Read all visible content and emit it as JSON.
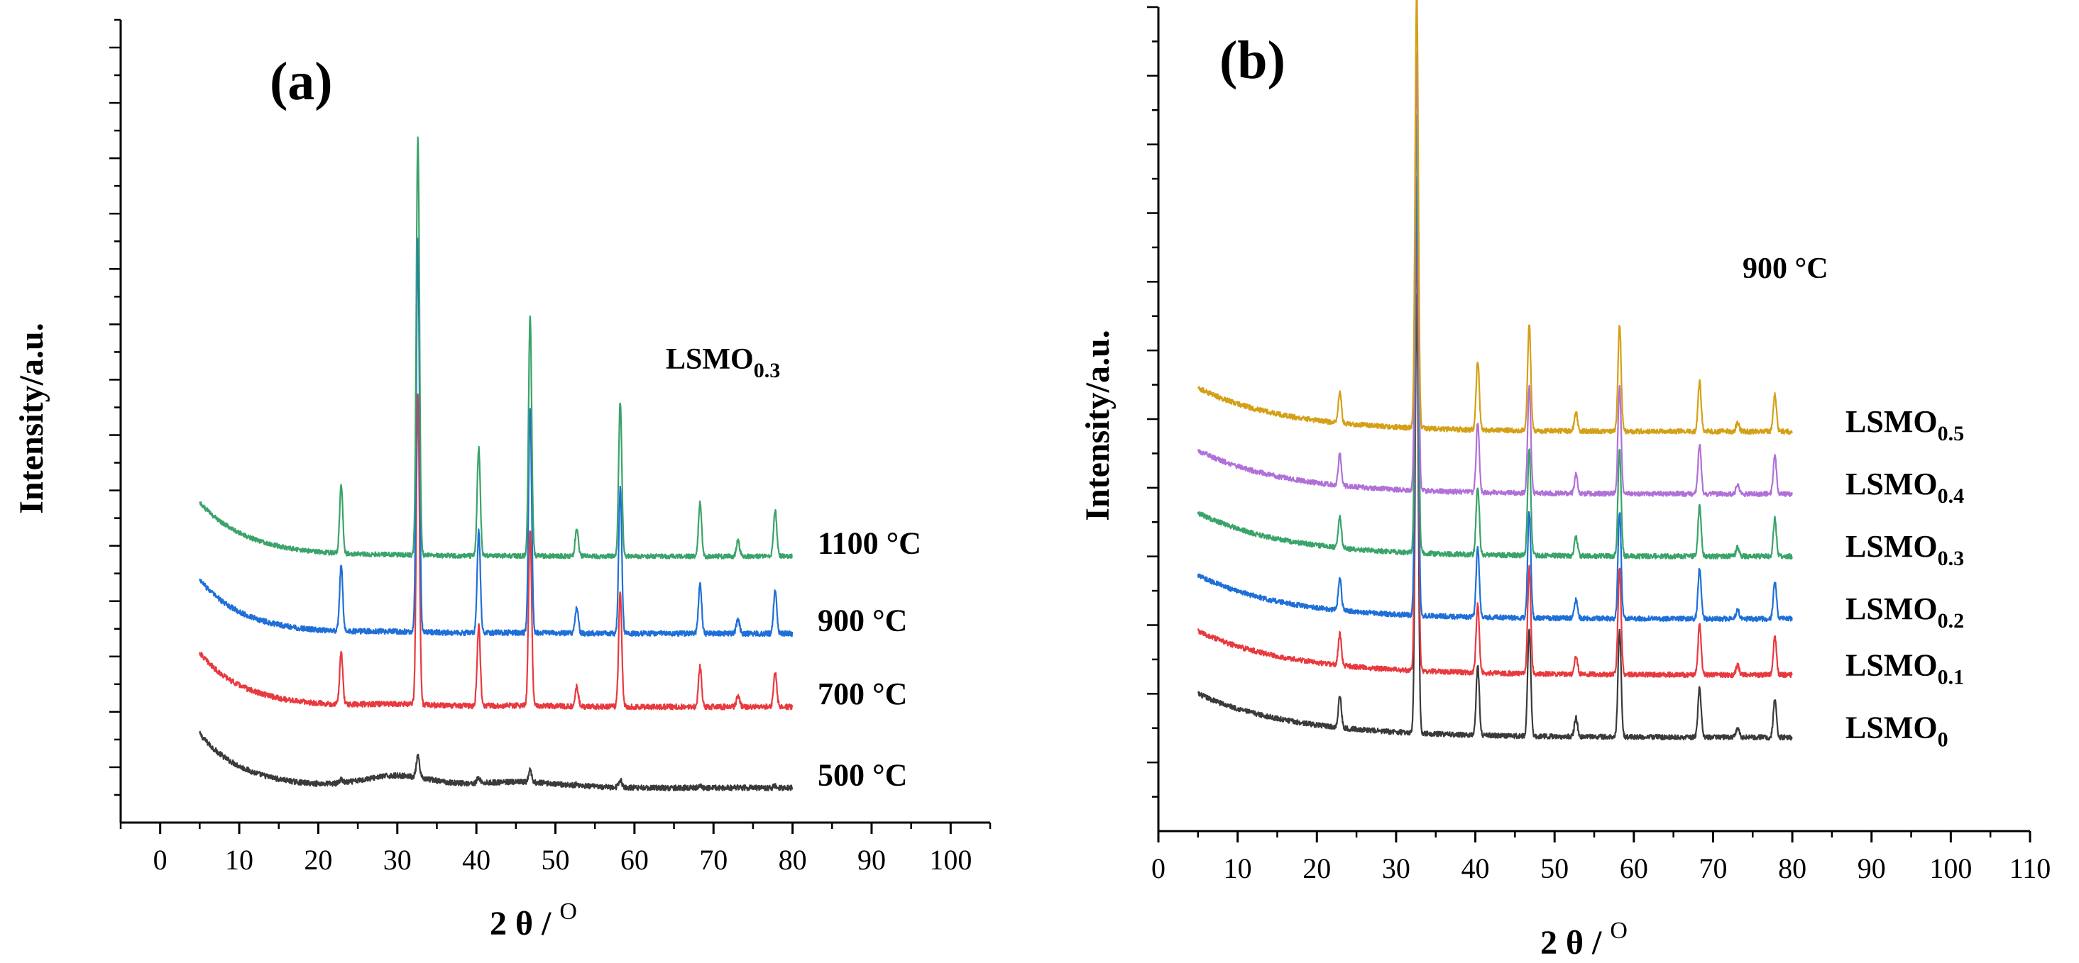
{
  "chart_data": [
    {
      "type": "line",
      "panel_label": "(a)",
      "title": "",
      "annotation": {
        "main": "LSMO",
        "sub": "0.3"
      },
      "xlabel": "2 θ / ",
      "xlabel_sup": "O",
      "ylabel": "Intensity/a.u.",
      "xlim": [
        -5,
        105
      ],
      "ylim": [
        -2,
        102
      ],
      "x_ticks": [
        0,
        10,
        20,
        30,
        40,
        50,
        60,
        70,
        80,
        90,
        100
      ],
      "x_tick_labels": [
        "0",
        "10",
        "20",
        "30",
        "40",
        "50",
        "60",
        "70",
        "80",
        "90",
        "100"
      ],
      "y_tick_labels_shown": false,
      "x_range_data": [
        5,
        80
      ],
      "series": [
        {
          "name": "500 °C",
          "label_main": "500 °C",
          "label_sub": "",
          "color": "#3a3a3a",
          "offset": 2.5,
          "hump": 1.5,
          "decay": 5.5,
          "noise": 0.35,
          "peakScale": 0.05
        },
        {
          "name": "700 °C",
          "label_main": "700 °C",
          "label_sub": "",
          "color": "#e8393f",
          "offset": 13.0,
          "hump": 0.3,
          "decay": 5.5,
          "noise": 0.35,
          "peakScale": 0.74
        },
        {
          "name": "900 °C",
          "label_main": "900 °C",
          "label_sub": "",
          "color": "#1f6fd8",
          "offset": 22.5,
          "hump": 0.2,
          "decay": 5.5,
          "noise": 0.35,
          "peakScale": 0.94
        },
        {
          "name": "1100 °C",
          "label_main": "1100 °C",
          "label_sub": "",
          "color": "#3aa36a",
          "offset": 32.5,
          "hump": 0.1,
          "decay": 6.0,
          "noise": 0.3,
          "peakScale": 1.0
        }
      ],
      "peaks": [
        {
          "x": 22.9,
          "h": 9
        },
        {
          "x": 32.6,
          "h": 54
        },
        {
          "x": 40.3,
          "h": 14
        },
        {
          "x": 46.8,
          "h": 31
        },
        {
          "x": 52.7,
          "h": 3.5
        },
        {
          "x": 58.2,
          "h": 20
        },
        {
          "x": 68.3,
          "h": 7
        },
        {
          "x": 73.1,
          "h": 2
        },
        {
          "x": 77.8,
          "h": 6
        }
      ]
    },
    {
      "type": "line",
      "panel_label": "(b)",
      "title": "",
      "annotation": {
        "main": "900 °C",
        "sub": ""
      },
      "xlabel": "2 θ / ",
      "xlabel_sup": "O",
      "ylabel": "Intensity/a.u.",
      "xlim": [
        0,
        110
      ],
      "ylim": [
        -7,
        125
      ],
      "x_ticks": [
        0,
        10,
        20,
        30,
        40,
        50,
        60,
        70,
        80,
        90,
        100,
        110
      ],
      "x_tick_labels": [
        "0",
        "10",
        "20",
        "30",
        "40",
        "50",
        "60",
        "70",
        "80",
        "90",
        "100",
        "110"
      ],
      "y_tick_labels_shown": false,
      "x_range_data": [
        5,
        80
      ],
      "series": [
        {
          "name": "LSMO0",
          "label_main": "LSMO",
          "label_sub": "0",
          "color": "#3a3a3a",
          "offset": 8.0,
          "hump": 0,
          "decay": 12,
          "noise": 0.4,
          "peakScale": 1.0
        },
        {
          "name": "LSMO0.1",
          "label_main": "LSMO",
          "label_sub": "0.1",
          "color": "#e8393f",
          "offset": 18.0,
          "hump": 0,
          "decay": 12,
          "noise": 0.4,
          "peakScale": 1.0
        },
        {
          "name": "LSMO0.2",
          "label_main": "LSMO",
          "label_sub": "0.2",
          "color": "#1f6fd8",
          "offset": 27.0,
          "hump": 0,
          "decay": 11,
          "noise": 0.4,
          "peakScale": 1.0
        },
        {
          "name": "LSMO0.3",
          "label_main": "LSMO",
          "label_sub": "0.3",
          "color": "#3aa36a",
          "offset": 37.0,
          "hump": 0,
          "decay": 11,
          "noise": 0.4,
          "peakScale": 1.0
        },
        {
          "name": "LSMO0.4",
          "label_main": "LSMO",
          "label_sub": "0.4",
          "color": "#b070d8",
          "offset": 47.0,
          "hump": 0,
          "decay": 11,
          "noise": 0.4,
          "peakScale": 1.0
        },
        {
          "name": "LSMO0.5",
          "label_main": "LSMO",
          "label_sub": "0.5",
          "color": "#d4a017",
          "offset": 57.0,
          "hump": 0,
          "decay": 11,
          "noise": 0.4,
          "peakScale": 1.0
        }
      ],
      "peaks": [
        {
          "x": 22.9,
          "h": 5
        },
        {
          "x": 32.6,
          "h": 70
        },
        {
          "x": 40.3,
          "h": 11
        },
        {
          "x": 46.8,
          "h": 17
        },
        {
          "x": 52.7,
          "h": 3
        },
        {
          "x": 58.2,
          "h": 17
        },
        {
          "x": 68.3,
          "h": 8
        },
        {
          "x": 73.1,
          "h": 1.5
        },
        {
          "x": 77.8,
          "h": 6
        }
      ]
    }
  ]
}
